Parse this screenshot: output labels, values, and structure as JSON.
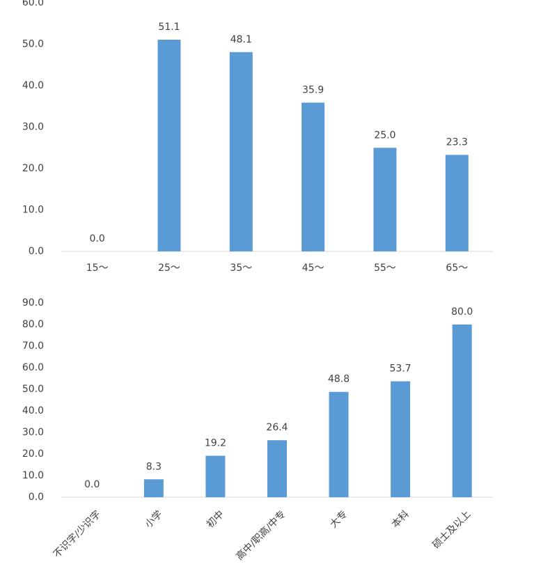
{
  "chart_data": [
    {
      "type": "bar",
      "categories": [
        "15～",
        "25～",
        "35～",
        "45～",
        "55～",
        "65～"
      ],
      "values": [
        0,
        51.1,
        48.1,
        35.9,
        25.0,
        23.3
      ],
      "value_labels": [
        "0.0",
        "51.1",
        "48.1",
        "35.9",
        "25.0",
        "23.3"
      ],
      "color": "#5b9bd5",
      "ylim": [
        0,
        60
      ],
      "yticks": [
        {
          "value": 0,
          "label": "0.0"
        },
        {
          "value": 10,
          "label": "10.0"
        },
        {
          "value": 20,
          "label": "20.0"
        },
        {
          "value": 30,
          "label": "30.0"
        },
        {
          "value": 40,
          "label": "40.0"
        },
        {
          "value": 50,
          "label": "50.0"
        },
        {
          "value": 60,
          "label": "60.0"
        }
      ],
      "grid": false
    },
    {
      "type": "bar",
      "categories": [
        "不识字/少识字",
        "小学",
        "初中",
        "高中/职高/中专",
        "大专",
        "本科",
        "硕士及以上"
      ],
      "values": [
        0,
        8.3,
        19.2,
        26.4,
        48.8,
        53.7,
        80.0
      ],
      "value_labels": [
        "0.0",
        "8.3",
        "19.2",
        "26.4",
        "48.8",
        "53.7",
        "80.0"
      ],
      "color": "#5b9bd5",
      "ylim": [
        0,
        90
      ],
      "yticks": [
        {
          "value": 0,
          "label": "0.0"
        },
        {
          "value": 10,
          "label": "10.0"
        },
        {
          "value": 20,
          "label": "20.0"
        },
        {
          "value": 30,
          "label": "30.0"
        },
        {
          "value": 40,
          "label": "40.0"
        },
        {
          "value": 50,
          "label": "50.0"
        },
        {
          "value": 60,
          "label": "60.0"
        },
        {
          "value": 70,
          "label": "70.0"
        },
        {
          "value": 80,
          "label": "80.0"
        },
        {
          "value": 90,
          "label": "90.0"
        }
      ],
      "grid": false
    }
  ]
}
